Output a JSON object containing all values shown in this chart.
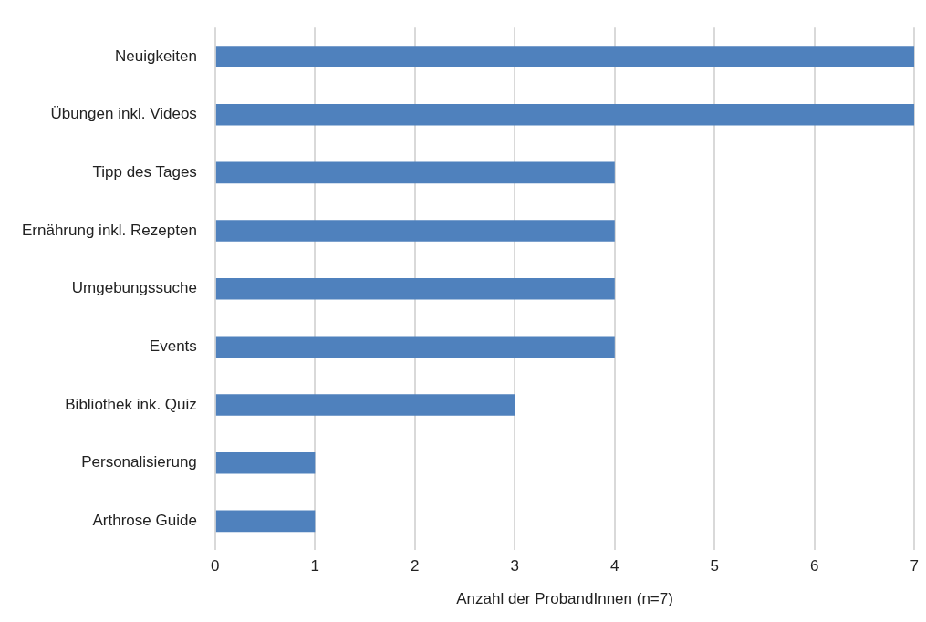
{
  "chart_data": {
    "type": "bar",
    "orientation": "horizontal",
    "xlabel": "Anzahl der ProbandInnen (n=7)",
    "categories": [
      "Neuigkeiten",
      "Übungen inkl. Videos",
      "Tipp des Tages",
      "Ernährung inkl. Rezepten",
      "Umgebungssuche",
      "Events",
      "Bibliothek ink. Quiz",
      "Personalisierung",
      "Arthrose Guide"
    ],
    "values": [
      7,
      7,
      4,
      4,
      4,
      4,
      3,
      1,
      1
    ],
    "color": "#4f81bd",
    "xlim": [
      0,
      7
    ],
    "xticks": [
      0,
      1,
      2,
      3,
      4,
      5,
      6,
      7
    ],
    "grid": "x",
    "legend": false
  }
}
